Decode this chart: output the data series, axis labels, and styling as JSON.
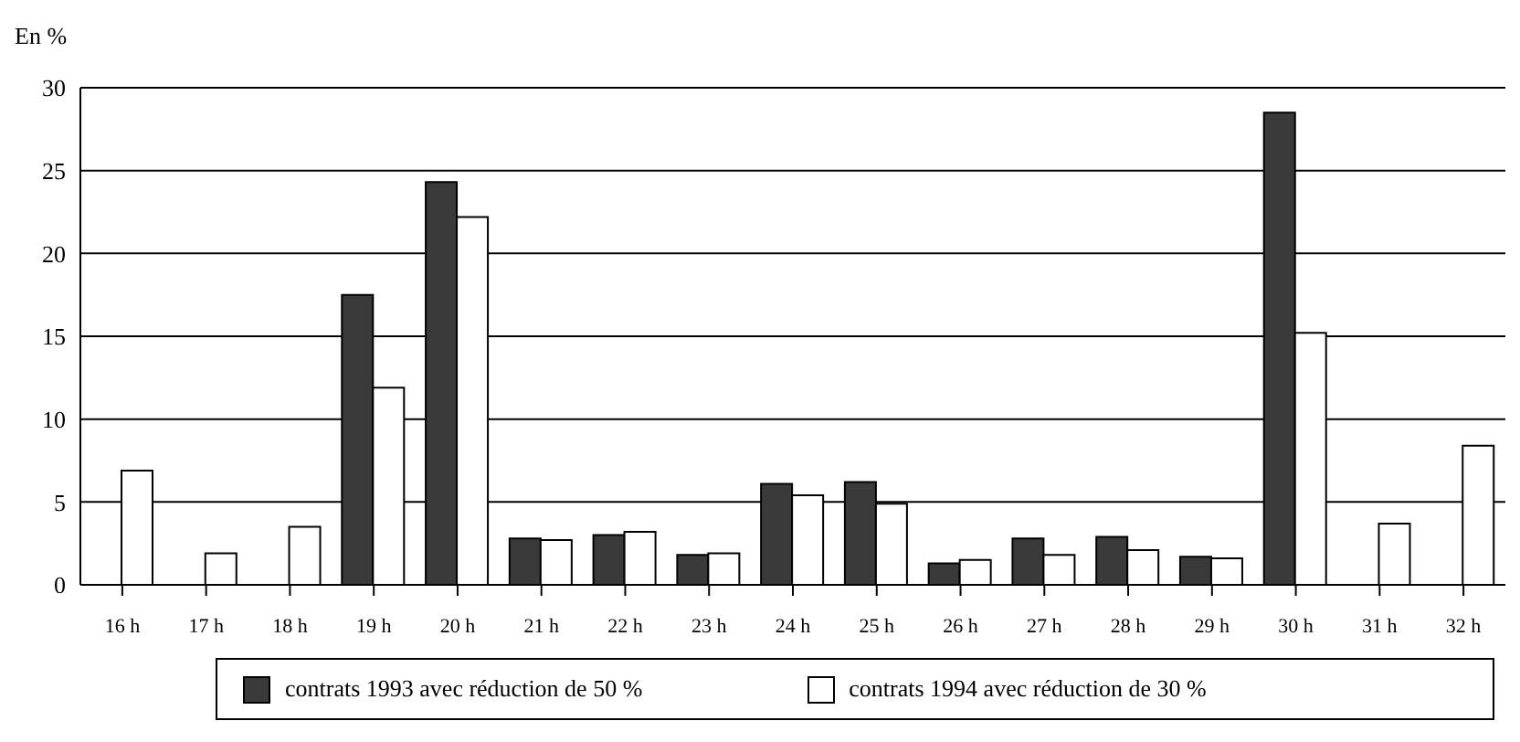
{
  "chart_data": {
    "type": "bar",
    "ylabel": "En %",
    "categories": [
      "16 h",
      "17 h",
      "18 h",
      "19 h",
      "20 h",
      "21 h",
      "22 h",
      "23 h",
      "24 h",
      "25 h",
      "26 h",
      "27 h",
      "28 h",
      "29 h",
      "30 h",
      "31 h",
      "32 h"
    ],
    "series": [
      {
        "name": "contrats 1993 avec réduction de 50 %",
        "color": "#3a3a3a",
        "values": [
          null,
          null,
          null,
          17.5,
          24.3,
          2.8,
          3.0,
          1.8,
          6.1,
          6.2,
          1.3,
          2.8,
          2.9,
          1.7,
          28.5,
          null,
          null
        ]
      },
      {
        "name": "contrats 1994 avec réduction de 30 %",
        "color": "#ffffff",
        "values": [
          6.9,
          1.9,
          3.5,
          11.9,
          22.2,
          2.7,
          3.2,
          1.9,
          5.4,
          4.9,
          1.5,
          1.8,
          2.1,
          1.6,
          15.2,
          3.7,
          8.4
        ]
      }
    ],
    "ylim": [
      0,
      30
    ],
    "yticks": [
      0,
      5,
      10,
      15,
      20,
      25,
      30
    ],
    "grid": "y",
    "legend": "bottom"
  }
}
